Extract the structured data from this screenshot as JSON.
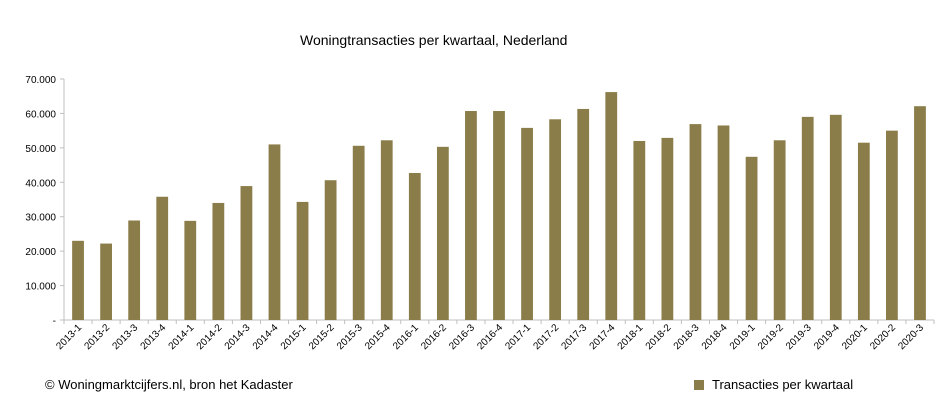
{
  "chart_data": {
    "type": "bar",
    "title": "Woningtransacties per kwartaal, Nederland",
    "xlabel": "",
    "ylabel": "",
    "ylim": [
      0,
      70000
    ],
    "yticks": [
      0,
      10000,
      20000,
      30000,
      40000,
      50000,
      60000,
      70000
    ],
    "ytick_labels": [
      "-",
      "10.000",
      "20.000",
      "30.000",
      "40.000",
      "50.000",
      "60.000",
      "70.000"
    ],
    "grid": false,
    "legend_position": "bottom-right",
    "categories": [
      "2013-1",
      "2013-2",
      "2013-3",
      "2013-4",
      "2014-1",
      "2014-2",
      "2014-3",
      "2014-4",
      "2015-1",
      "2015-2",
      "2015-3",
      "2015-4",
      "2016-1",
      "2016-2",
      "2016-3",
      "2016-4",
      "2017-1",
      "2017-2",
      "2017-3",
      "2017-4",
      "2018-1",
      "2018-2",
      "2018-3",
      "2018-4",
      "2019-1",
      "2019-2",
      "2019-3",
      "2019-4",
      "2020-1",
      "2020-2",
      "2020-3"
    ],
    "series": [
      {
        "name": "Transacties per kwartaal",
        "color": "#8b7d4a",
        "values": [
          23000,
          22200,
          28900,
          35800,
          28800,
          34000,
          38900,
          51000,
          34300,
          40600,
          50600,
          52200,
          42700,
          50300,
          60700,
          60700,
          55800,
          58300,
          61300,
          66200,
          52000,
          52900,
          56900,
          56500,
          47400,
          52200,
          59000,
          59600,
          51500,
          55000,
          62100
        ]
      }
    ]
  },
  "footer": {
    "credit": "© Woningmarktcijfers.nl, bron het Kadaster"
  }
}
